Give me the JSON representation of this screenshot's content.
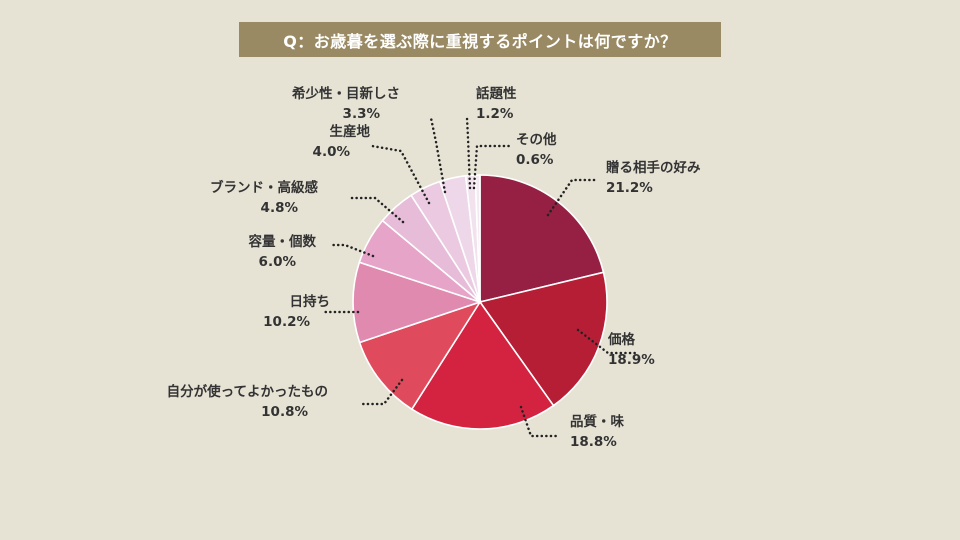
{
  "chart_data": {
    "type": "pie",
    "title": "Q：お歳暮を選ぶ際に重視するポイントは何ですか？",
    "start": "12 o'clock",
    "direction": "clockwise",
    "slices": [
      {
        "label": "贈る相手の好み",
        "value_text": "21.2%",
        "value": 21.2,
        "color": "#952043"
      },
      {
        "label": "価格",
        "value_text": "18.9%",
        "value": 18.9,
        "color": "#b51e35"
      },
      {
        "label": "品質・味",
        "value_text": "18.8%",
        "value": 18.8,
        "color": "#d32340"
      },
      {
        "label": "自分が使ってよかったもの",
        "value_text": "10.8%",
        "value": 10.8,
        "color": "#df4b5d"
      },
      {
        "label": "日持ち",
        "value_text": "10.2%",
        "value": 10.2,
        "color": "#e08ab0"
      },
      {
        "label": "容量・個数",
        "value_text": "6.0%",
        "value": 6.0,
        "color": "#e6a4c8"
      },
      {
        "label": "ブランド・高級感",
        "value_text": "4.8%",
        "value": 4.8,
        "color": "#e7bcd8"
      },
      {
        "label": "生産地",
        "value_text": "4.0%",
        "value": 4.0,
        "color": "#ebcae1"
      },
      {
        "label": "希少性・目新しさ",
        "value_text": "3.3%",
        "value": 3.3,
        "color": "#efd7ea"
      },
      {
        "label": "話題性",
        "value_text": "1.2%",
        "value": 1.2,
        "color": "#f1e2ee"
      },
      {
        "label": "その他",
        "value_text": "0.6%",
        "value": 0.6,
        "color": "#f4eaf2"
      }
    ]
  }
}
